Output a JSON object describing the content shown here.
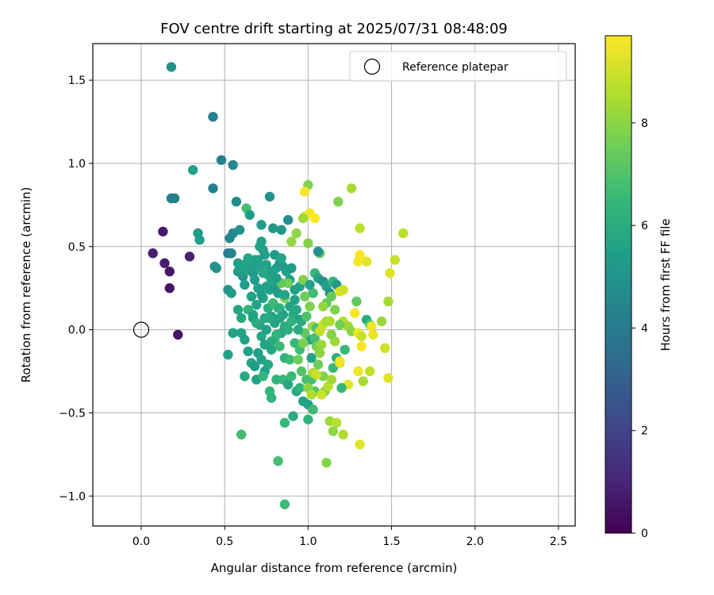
{
  "chart_data": {
    "type": "scatter",
    "title": "FOV centre drift starting at 2025/07/31 08:48:09",
    "xlabel": "Angular distance from reference (arcmin)",
    "ylabel": "Rotation from reference (arcmin)",
    "xlim": [
      -0.29,
      2.6
    ],
    "ylim": [
      -1.18,
      1.72
    ],
    "x_ticks": [
      0.0,
      0.5,
      1.0,
      1.5,
      2.0,
      2.5
    ],
    "x_tick_labels": [
      "0.0",
      "0.5",
      "1.0",
      "1.5",
      "2.0",
      "2.5"
    ],
    "y_ticks": [
      -1.0,
      -0.5,
      0.0,
      0.5,
      1.0,
      1.5
    ],
    "y_tick_labels": [
      "−1.0",
      "−0.5",
      "0.0",
      "0.5",
      "1.0",
      "1.5"
    ],
    "grid": true,
    "legend": {
      "placement": "top-right",
      "entries": [
        "Reference platepar"
      ]
    },
    "reference_point": {
      "x": 0.0,
      "y": 0.0,
      "label": "Reference platepar"
    },
    "colorbar": {
      "label": "Hours from first FF file",
      "colormap": "viridis",
      "range": [
        0,
        9.7
      ],
      "ticks": [
        0,
        2,
        4,
        6,
        8
      ],
      "tick_labels": [
        "0",
        "2",
        "4",
        "6",
        "8"
      ]
    },
    "points": [
      [
        0.18,
        1.58,
        4.9
      ],
      [
        0.43,
        1.28,
        4.1
      ],
      [
        0.48,
        1.02,
        4.2
      ],
      [
        0.55,
        0.99,
        4.6
      ],
      [
        0.31,
        0.96,
        5.5
      ],
      [
        0.43,
        0.85,
        4.2
      ],
      [
        0.77,
        0.8,
        5.0
      ],
      [
        0.18,
        0.79,
        4.2
      ],
      [
        0.2,
        0.79,
        4.2
      ],
      [
        0.57,
        0.77,
        4.7
      ],
      [
        0.63,
        0.73,
        6.8
      ],
      [
        0.65,
        0.69,
        5.3
      ],
      [
        0.88,
        0.66,
        4.7
      ],
      [
        0.34,
        0.58,
        5.3
      ],
      [
        0.35,
        0.54,
        5.4
      ],
      [
        0.13,
        0.59,
        0.7
      ],
      [
        0.55,
        0.58,
        4.6
      ],
      [
        0.59,
        0.6,
        4.8
      ],
      [
        0.72,
        0.63,
        5.3
      ],
      [
        0.79,
        0.61,
        5.2
      ],
      [
        0.84,
        0.6,
        5.2
      ],
      [
        0.53,
        0.55,
        4.5
      ],
      [
        0.52,
        0.46,
        4.2
      ],
      [
        0.54,
        0.46,
        4.4
      ],
      [
        0.07,
        0.46,
        0.8
      ],
      [
        0.14,
        0.4,
        0.8
      ],
      [
        0.17,
        0.35,
        0.6
      ],
      [
        0.29,
        0.44,
        0.9
      ],
      [
        0.17,
        0.25,
        0.6
      ],
      [
        0.22,
        -0.03,
        0.5
      ],
      [
        0.44,
        0.38,
        5.0
      ],
      [
        0.45,
        0.37,
        5.0
      ],
      [
        0.52,
        0.24,
        5.0
      ],
      [
        0.54,
        0.22,
        5.3
      ],
      [
        0.58,
        0.4,
        5.5
      ],
      [
        0.6,
        0.36,
        5.5
      ],
      [
        0.61,
        0.32,
        5.1
      ],
      [
        0.63,
        0.4,
        5.6
      ],
      [
        0.64,
        0.43,
        5.7
      ],
      [
        0.66,
        0.37,
        5.5
      ],
      [
        0.68,
        0.3,
        5.3
      ],
      [
        0.7,
        0.42,
        5.6
      ],
      [
        0.71,
        0.5,
        5.6
      ],
      [
        0.72,
        0.53,
        5.5
      ],
      [
        0.74,
        0.45,
        5.4
      ],
      [
        0.75,
        0.39,
        5.6
      ],
      [
        0.76,
        0.33,
        5.2
      ],
      [
        0.78,
        0.35,
        5.4
      ],
      [
        0.8,
        0.45,
        5.3
      ],
      [
        0.81,
        0.37,
        5.5
      ],
      [
        0.83,
        0.4,
        5.2
      ],
      [
        0.85,
        0.38,
        5.3
      ],
      [
        0.87,
        0.35,
        5.5
      ],
      [
        0.89,
        0.3,
        5.4
      ],
      [
        0.9,
        0.37,
        5.3
      ],
      [
        0.62,
        0.27,
        5.4
      ],
      [
        0.66,
        0.2,
        5.6
      ],
      [
        0.7,
        0.25,
        5.5
      ],
      [
        0.73,
        0.19,
        5.6
      ],
      [
        0.77,
        0.24,
        5.5
      ],
      [
        0.8,
        0.26,
        5.3
      ],
      [
        0.82,
        0.22,
        5.4
      ],
      [
        0.86,
        0.2,
        5.6
      ],
      [
        0.88,
        0.28,
        7.6
      ],
      [
        0.89,
        0.14,
        5.7
      ],
      [
        0.92,
        0.18,
        5.6
      ],
      [
        0.95,
        0.26,
        5.5
      ],
      [
        0.97,
        0.3,
        7.8
      ],
      [
        0.58,
        0.12,
        5.7
      ],
      [
        0.6,
        0.07,
        5.8
      ],
      [
        0.64,
        0.12,
        6.3
      ],
      [
        0.67,
        0.07,
        5.5
      ],
      [
        0.71,
        0.03,
        5.6
      ],
      [
        0.74,
        0.07,
        5.8
      ],
      [
        0.76,
        0.13,
        6.0
      ],
      [
        0.78,
        0.08,
        5.5
      ],
      [
        0.8,
        0.04,
        5.7
      ],
      [
        0.83,
        0.13,
        6.5
      ],
      [
        0.85,
        0.09,
        5.5
      ],
      [
        0.86,
        0.19,
        7.7
      ],
      [
        0.91,
        0.09,
        5.8
      ],
      [
        0.93,
        0.12,
        5.8
      ],
      [
        0.95,
        0.06,
        5.3
      ],
      [
        0.55,
        -0.02,
        5.5
      ],
      [
        0.6,
        -0.02,
        5.6
      ],
      [
        0.62,
        -0.06,
        5.5
      ],
      [
        0.64,
        -0.13,
        5.5
      ],
      [
        0.66,
        -0.2,
        5.6
      ],
      [
        0.68,
        -0.22,
        5.3
      ],
      [
        0.7,
        -0.14,
        5.5
      ],
      [
        0.72,
        -0.18,
        5.6
      ],
      [
        0.74,
        -0.25,
        5.6
      ],
      [
        0.76,
        -0.21,
        5.8
      ],
      [
        0.78,
        -0.12,
        5.7
      ],
      [
        0.8,
        -0.06,
        6.5
      ],
      [
        0.83,
        -0.1,
        6.6
      ],
      [
        0.86,
        -0.17,
        6.3
      ],
      [
        0.89,
        -0.18,
        6.6
      ],
      [
        0.92,
        -0.08,
        6.5
      ],
      [
        0.95,
        -0.12,
        6.7
      ],
      [
        0.52,
        -0.15,
        5.5
      ],
      [
        0.62,
        -0.28,
        5.8
      ],
      [
        0.69,
        -0.3,
        5.6
      ],
      [
        0.73,
        -0.28,
        6.3
      ],
      [
        0.77,
        -0.37,
        6.4
      ],
      [
        0.78,
        -0.41,
        6.3
      ],
      [
        0.81,
        -0.3,
        6.3
      ],
      [
        0.85,
        -0.3,
        6.5
      ],
      [
        0.88,
        -0.33,
        5.7
      ],
      [
        0.9,
        -0.28,
        6.5
      ],
      [
        0.93,
        -0.37,
        5.8
      ],
      [
        0.95,
        -0.35,
        6.3
      ],
      [
        0.97,
        -0.43,
        5.7
      ],
      [
        0.99,
        -0.3,
        6.8
      ],
      [
        1.0,
        -0.45,
        5.6
      ],
      [
        1.02,
        -0.3,
        6.8
      ],
      [
        1.04,
        -0.37,
        7.0
      ],
      [
        1.01,
        -0.06,
        5.8
      ],
      [
        1.02,
        -0.17,
        5.7
      ],
      [
        1.04,
        -0.05,
        6.8
      ],
      [
        1.05,
        -0.1,
        7.6
      ],
      [
        1.07,
        -0.14,
        8.0
      ],
      [
        1.09,
        -0.28,
        7.8
      ],
      [
        1.1,
        -0.37,
        7.8
      ],
      [
        1.12,
        -0.34,
        8.7
      ],
      [
        1.14,
        -0.3,
        8.3
      ],
      [
        1.15,
        -0.23,
        6.6
      ],
      [
        1.17,
        -0.17,
        6.0
      ],
      [
        1.19,
        -0.2,
        9.1
      ],
      [
        0.91,
        -0.52,
        6.0
      ],
      [
        0.86,
        -0.56,
        6.5
      ],
      [
        0.6,
        -0.63,
        6.7
      ],
      [
        0.82,
        -0.79,
        6.8
      ],
      [
        0.86,
        -1.05,
        6.6
      ],
      [
        1.0,
        -0.54,
        6.3
      ],
      [
        1.03,
        -0.48,
        6.6
      ],
      [
        1.11,
        -0.8,
        7.9
      ],
      [
        1.13,
        -0.55,
        8.3
      ],
      [
        1.15,
        -0.61,
        8.0
      ],
      [
        1.17,
        -0.56,
        8.7
      ],
      [
        1.21,
        -0.63,
        8.5
      ],
      [
        1.31,
        -0.69,
        9.3
      ],
      [
        1.0,
        0.87,
        7.8
      ],
      [
        0.98,
        0.83,
        9.6
      ],
      [
        0.98,
        0.68,
        9.3
      ],
      [
        1.01,
        0.7,
        9.5
      ],
      [
        1.04,
        0.67,
        9.7
      ],
      [
        0.97,
        0.67,
        8.3
      ],
      [
        0.93,
        0.58,
        8.0
      ],
      [
        0.9,
        0.53,
        8.1
      ],
      [
        1.0,
        0.52,
        7.9
      ],
      [
        1.07,
        0.46,
        7.2
      ],
      [
        1.06,
        0.47,
        4.9
      ],
      [
        1.04,
        0.34,
        6.5
      ],
      [
        1.06,
        0.31,
        5.6
      ],
      [
        1.09,
        0.29,
        4.9
      ],
      [
        1.11,
        0.26,
        5.5
      ],
      [
        1.13,
        0.22,
        4.8
      ],
      [
        1.15,
        0.29,
        6.4
      ],
      [
        1.17,
        0.27,
        5.2
      ],
      [
        1.19,
        0.23,
        9.2
      ],
      [
        1.21,
        0.24,
        9.0
      ],
      [
        1.18,
        0.77,
        7.8
      ],
      [
        1.26,
        0.85,
        8.4
      ],
      [
        1.31,
        0.61,
        8.7
      ],
      [
        1.31,
        0.45,
        9.7
      ],
      [
        1.3,
        0.41,
        9.6
      ],
      [
        1.35,
        0.41,
        9.3
      ],
      [
        1.49,
        0.34,
        9.2
      ],
      [
        1.52,
        0.42,
        8.9
      ],
      [
        1.57,
        0.58,
        8.7
      ],
      [
        1.48,
        0.17,
        8.4
      ],
      [
        1.29,
        0.17,
        7.3
      ],
      [
        1.35,
        0.06,
        6.0
      ],
      [
        1.37,
        0.03,
        7.0
      ],
      [
        1.28,
        0.1,
        9.6
      ],
      [
        1.21,
        0.05,
        8.6
      ],
      [
        1.24,
        0.02,
        8.3
      ],
      [
        1.26,
        -0.01,
        8.0
      ],
      [
        1.3,
        -0.02,
        9.5
      ],
      [
        1.32,
        -0.04,
        8.9
      ],
      [
        1.38,
        0.02,
        9.5
      ],
      [
        1.39,
        -0.03,
        9.4
      ],
      [
        1.44,
        0.05,
        8.2
      ],
      [
        1.46,
        -0.11,
        9.0
      ],
      [
        1.32,
        -0.1,
        9.6
      ],
      [
        1.22,
        -0.12,
        6.5
      ],
      [
        1.19,
        -0.19,
        9.5
      ],
      [
        1.16,
        -0.07,
        8.3
      ],
      [
        1.3,
        -0.25,
        9.5
      ],
      [
        1.33,
        -0.31,
        8.4
      ],
      [
        1.37,
        -0.25,
        8.8
      ],
      [
        1.48,
        -0.29,
        9.3
      ],
      [
        1.24,
        -0.33,
        9.3
      ],
      [
        1.2,
        -0.35,
        6.4
      ],
      [
        1.11,
        0.16,
        7.3
      ],
      [
        1.14,
        0.2,
        7.4
      ],
      [
        1.16,
        0.12,
        7.8
      ],
      [
        1.19,
        0.03,
        7.6
      ],
      [
        1.09,
        0.14,
        8.1
      ],
      [
        1.03,
        0.22,
        6.7
      ],
      [
        1.01,
        0.27,
        5.5
      ],
      [
        1.03,
        0.02,
        8.2
      ],
      [
        1.05,
        0.01,
        7.0
      ],
      [
        1.07,
        -0.01,
        8.8
      ],
      [
        1.09,
        0.03,
        9.0
      ],
      [
        1.11,
        0.05,
        8.3
      ],
      [
        1.13,
        0.05,
        8.5
      ],
      [
        1.14,
        -0.03,
        7.9
      ],
      [
        1.08,
        -0.09,
        8.2
      ],
      [
        1.06,
        -0.21,
        7.5
      ],
      [
        1.03,
        -0.26,
        8.5
      ],
      [
        1.05,
        -0.27,
        8.9
      ],
      [
        1.0,
        -0.35,
        8.0
      ],
      [
        1.08,
        -0.39,
        9.0
      ],
      [
        1.02,
        -0.39,
        8.5
      ],
      [
        0.96,
        -0.25,
        7.0
      ],
      [
        0.94,
        -0.18,
        7.5
      ],
      [
        0.97,
        -0.08,
        7.8
      ],
      [
        0.98,
        -0.02,
        7.3
      ],
      [
        0.96,
        0.05,
        5.9
      ],
      [
        0.98,
        0.2,
        7.5
      ],
      [
        0.99,
        0.08,
        7.0
      ],
      [
        1.01,
        0.14,
        7.8
      ],
      [
        0.79,
        0.16,
        6.6
      ],
      [
        0.82,
        0.13,
        6.2
      ],
      [
        0.84,
        0.28,
        7.3
      ],
      [
        0.92,
        0.24,
        5.5
      ],
      [
        0.9,
        0.05,
        6.2
      ],
      [
        0.86,
        0.02,
        6.0
      ],
      [
        0.84,
        -0.02,
        5.8
      ],
      [
        0.81,
        -0.03,
        6.3
      ],
      [
        0.78,
        -0.07,
        6.0
      ],
      [
        0.76,
        0.07,
        5.9
      ],
      [
        0.67,
        0.09,
        5.6
      ],
      [
        0.69,
        0.04,
        6.0
      ],
      [
        0.72,
        -0.04,
        5.8
      ],
      [
        0.74,
        -0.09,
        5.6
      ],
      [
        0.84,
        0.43,
        5.7
      ],
      [
        0.86,
        0.21,
        5.6
      ],
      [
        0.88,
        0.0,
        6.1
      ],
      [
        0.69,
        0.15,
        5.6
      ],
      [
        0.72,
        0.21,
        5.3
      ],
      [
        0.75,
        0.26,
        5.5
      ],
      [
        0.83,
        0.07,
        5.7
      ],
      [
        0.94,
        0.0,
        6.0
      ],
      [
        0.75,
        0.0,
        5.6
      ],
      [
        0.58,
        0.35,
        5.3
      ],
      [
        0.63,
        0.36,
        5.6
      ],
      [
        0.67,
        0.34,
        5.3
      ],
      [
        0.7,
        0.38,
        5.5
      ],
      [
        0.73,
        0.34,
        5.8
      ],
      [
        0.78,
        0.3,
        5.7
      ],
      [
        0.81,
        0.31,
        5.4
      ],
      [
        0.73,
        0.48,
        5.6
      ],
      [
        0.68,
        0.42,
        5.5
      ]
    ]
  }
}
